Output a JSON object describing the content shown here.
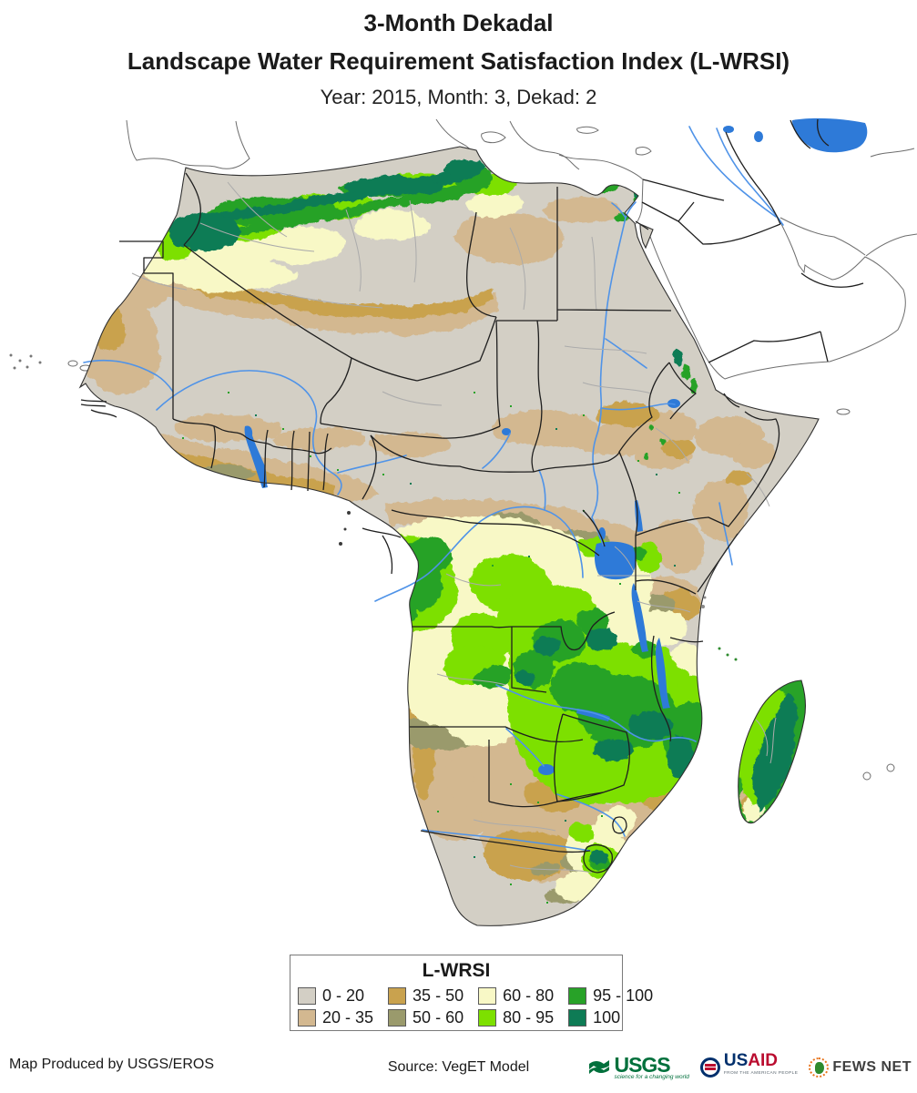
{
  "title": {
    "line1": "3-Month Dekadal",
    "line2": "Landscape Water Requirement Satisfaction Index (L-WRSI)"
  },
  "subtitle": "Year: 2015, Month: 3, Dekad: 2",
  "legend": {
    "title": "L-WRSI",
    "items": [
      {
        "label": "0 - 20",
        "color": "#d3cfc5"
      },
      {
        "label": "20 - 35",
        "color": "#d3b890"
      },
      {
        "label": "35 - 50",
        "color": "#c9a24e"
      },
      {
        "label": "50 - 60",
        "color": "#9a9a6c"
      },
      {
        "label": "60 - 80",
        "color": "#f8f8c6"
      },
      {
        "label": "80 - 95",
        "color": "#7de000"
      },
      {
        "label": "95 - 100",
        "color": "#28a228"
      },
      {
        "label": "100",
        "color": "#0e7b55"
      }
    ]
  },
  "map": {
    "region": "Africa",
    "colors": {
      "water": "#2e7ad8",
      "river": "#4f93e8",
      "country_border": "#1f1f1f",
      "admin_border": "#ababab",
      "nodata_outline": "#6e6e6e",
      "coast": "#2f2f2f"
    }
  },
  "footer": {
    "produced_by": "Map Produced by USGS/EROS",
    "source": "Source: VegET Model",
    "logos": {
      "usgs": {
        "text": "USGS",
        "tagline": "science for a changing world",
        "color": "#00703c"
      },
      "usaid": {
        "us": "US",
        "aid": "AID",
        "tagline": "FROM THE AMERICAN PEOPLE",
        "blue": "#002f6c",
        "red": "#ba0c2f"
      },
      "fewsnet": {
        "text": "FEWS NET",
        "color": "#3f3f3f"
      }
    }
  }
}
